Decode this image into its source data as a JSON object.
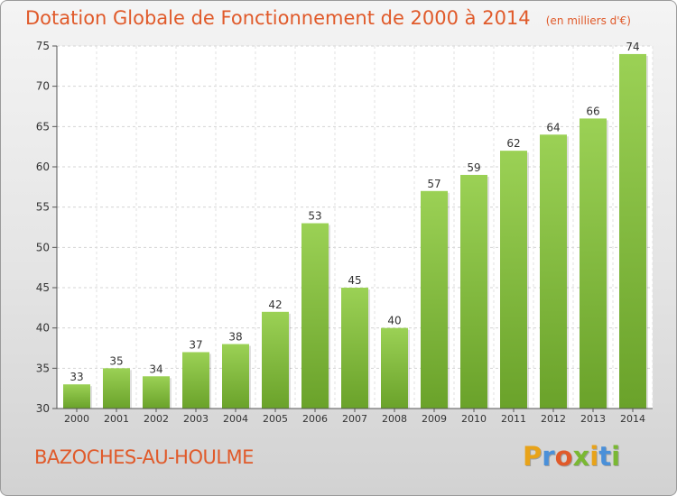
{
  "title": "Dotation Globale de Fonctionnement de 2000 à 2014",
  "subtitle": "(en milliers d'€)",
  "commune": "BAZOCHES-AU-HOULME",
  "brand": {
    "letters": [
      "P",
      "r",
      "o",
      "x",
      "i",
      "t",
      "i"
    ],
    "colors": [
      "#e8a319",
      "#4a90d9",
      "#e05a2a",
      "#7ab833",
      "#e8a319",
      "#4a90d9",
      "#7ab833"
    ]
  },
  "colors": {
    "bar_top": "#9bd155",
    "bar_bottom": "#6aa22a",
    "title": "#e05a2a"
  },
  "chart_data": {
    "type": "bar",
    "categories": [
      "2000",
      "2001",
      "2002",
      "2003",
      "2004",
      "2005",
      "2006",
      "2007",
      "2008",
      "2009",
      "2010",
      "2011",
      "2012",
      "2013",
      "2014"
    ],
    "values": [
      33,
      35,
      34,
      37,
      38,
      42,
      53,
      45,
      40,
      57,
      59,
      62,
      64,
      66,
      74
    ],
    "ylim": [
      30,
      75
    ],
    "yticks": [
      30,
      35,
      40,
      45,
      50,
      55,
      60,
      65,
      70,
      75
    ],
    "grid": true
  }
}
